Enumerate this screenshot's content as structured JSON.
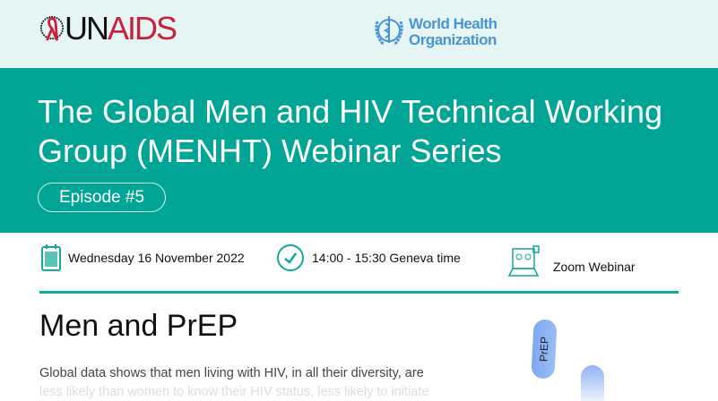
{
  "header": {
    "logos": {
      "unaids": {
        "part1": "UN",
        "part2": "AIDS"
      },
      "who": {
        "line1": "World Health",
        "line2": "Organization"
      }
    },
    "title": "The Global Men and HIV Technical Working Group (MENHT) Webinar Series",
    "episode": "Episode #5"
  },
  "info": {
    "date": "Wednesday 16 November 2022",
    "time": "14:00 - 15:30 Geneva time",
    "venue": "Zoom Webinar"
  },
  "content": {
    "heading": "Men and PrEP",
    "line1": "Global data shows that men living with HIV, in all their diversity, are",
    "line2": "less likely than women to know their HIV status, less likely to initiate",
    "pill_label": "PrEP"
  },
  "colors": {
    "teal": "#00a595",
    "unaids_red": "#c8203d",
    "who_blue": "#4a94d6"
  }
}
